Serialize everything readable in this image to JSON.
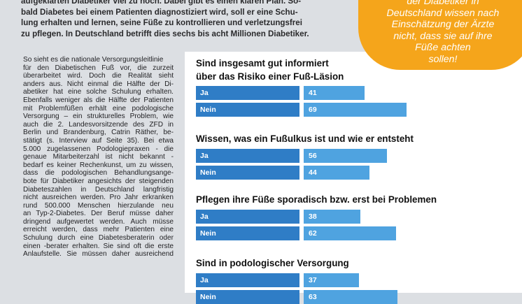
{
  "intro_lines": [
    "aufgeklärten Diabetiker viel zu hoch. Dabei gibt es einen klaren Plan. So-",
    "bald Diabetes bei einem Patienten diagnostiziert wird, soll er eine Schu-",
    "lung erhalten und lernen, seine Füße zu kontrollieren und verletzungsfrei",
    "zu pflegen. In Deutschland betrifft dies sechs bis acht Millionen Diabetiker."
  ],
  "body_lines": [
    "So sieht es die nationale Versorgungsleitlinie",
    "für den Diabetischen Fuß vor, die zurzeit",
    "überarbeitet wird. Doch die Realität sieht",
    "anders aus. Nicht einmal die Hälfte der Di-",
    "abetiker hat eine solche Schulung erhalten.",
    "Ebenfalls weniger als die Hälfte der Patienten",
    "mit Problemfüßen erhält eine podologische",
    "Versorgung – ein strukturelles Problem, wie",
    "auch die 2. Landesvorsitzende des ZFD in",
    "Berlin und Brandenburg, Catrin Räther, be-",
    "stätigt (s. Interview auf Seite 35). Bei etwa",
    "5.000 zugelassenen Podologiepraxen - die",
    "genaue Mitarbeiterzahl ist nicht bekannt -",
    "bedarf es keiner Rechenkunst, um zu wissen,",
    "dass die podologischen Behandlungsange-",
    "bote für Diabetiker angesichts der steigenden",
    "Diabeteszahlen in Deutschland langfristig",
    "nicht ausreichen werden. Pro Jahr erkranken",
    "rund 500.000 Menschen hierzulande neu",
    "an Typ-2-Diabetes. Der Beruf müsse daher",
    "dringend aufgewertet werden. Auch müsse",
    "erreicht werden, dass mehr Patienten eine",
    "Schulung durch eine Diabetesberaterin oder",
    "einen -berater erhalten. Sie sind oft die erste",
    "Anlaufstelle. Sie müssen daher ausreichend"
  ],
  "badge_lines": [
    "der Diabetiker in",
    "Deutschland wissen nach",
    "Einschätzung der Ärzte",
    "nicht, dass sie auf ihre",
    "Füße achten",
    "sollen!"
  ],
  "chart_data": {
    "type": "bar",
    "orientation": "horizontal",
    "groups": [
      {
        "title_lines": [
          "Sind insgesamt gut informiert",
          "über das Risiko einer Fuß-Läsion"
        ],
        "bars": [
          {
            "label": "Ja",
            "value": 41
          },
          {
            "label": "Nein",
            "value": 69
          }
        ]
      },
      {
        "title_lines": [
          "Wissen, was ein Fußulkus ist und wie er entsteht"
        ],
        "bars": [
          {
            "label": "Ja",
            "value": 56
          },
          {
            "label": "Nein",
            "value": 44
          }
        ]
      },
      {
        "title_lines": [
          "Pflegen ihre Füße sporadisch bzw. erst bei Problemen"
        ],
        "bars": [
          {
            "label": "Ja",
            "value": 38
          },
          {
            "label": "Nein",
            "value": 62
          }
        ]
      },
      {
        "title_lines": [
          "Sind in podologischer Versorgung"
        ],
        "bars": [
          {
            "label": "Ja",
            "value": 37
          },
          {
            "label": "Nein",
            "value": 63
          }
        ]
      }
    ],
    "colors": {
      "label_bg": "#2f7dc6",
      "bar": "#4fa3e0"
    }
  }
}
